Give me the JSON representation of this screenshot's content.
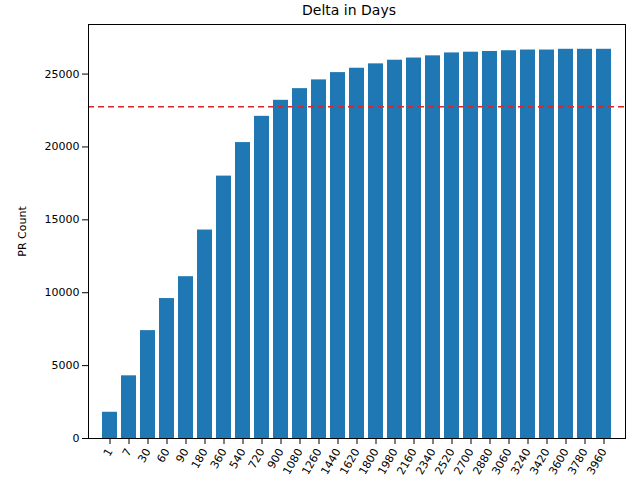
{
  "chart_data": {
    "type": "bar",
    "title": "Delta in Days",
    "y_label": "PR Count",
    "categories": [
      "1",
      "7",
      "30",
      "60",
      "90",
      "180",
      "360",
      "540",
      "720",
      "900",
      "1080",
      "1260",
      "1440",
      "1620",
      "1800",
      "1980",
      "2160",
      "2340",
      "2520",
      "2700",
      "2880",
      "3060",
      "3240",
      "3420",
      "3600",
      "3780",
      "3960"
    ],
    "values": [
      1800,
      4300,
      7400,
      9600,
      11100,
      14300,
      18000,
      20300,
      22100,
      23200,
      24000,
      24600,
      25100,
      25400,
      25700,
      25950,
      26100,
      26250,
      26450,
      26500,
      26550,
      26600,
      26650,
      26650,
      26700,
      26700,
      26700
    ],
    "color": "#1f77b4",
    "ylim": [
      0,
      28400
    ],
    "yticks": [
      0,
      5000,
      10000,
      15000,
      20000,
      25000
    ],
    "grid": false,
    "hlines": [
      {
        "value": 22750,
        "color": "#d62728",
        "line_style": "dashed"
      }
    ]
  }
}
